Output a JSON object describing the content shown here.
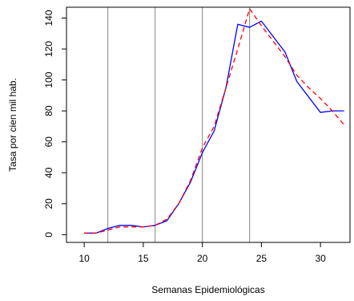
{
  "chart_data": {
    "type": "line",
    "xlabel": "Semanas Epidemiológicas",
    "ylabel": "Tasa por cien mil hab.",
    "xlim": [
      8.5,
      32.5
    ],
    "ylim": [
      -5,
      147
    ],
    "x_ticks": [
      10,
      15,
      20,
      25,
      30
    ],
    "y_ticks": [
      0,
      20,
      40,
      60,
      80,
      100,
      120,
      140
    ],
    "vertical_reference_lines": [
      12,
      16,
      20,
      24
    ],
    "grid": false,
    "legend": "none",
    "series": [
      {
        "color": "#0000ff",
        "style": "solid",
        "x": [
          10,
          11,
          12,
          13,
          14,
          15,
          16,
          17,
          18,
          19,
          20,
          21,
          22,
          23,
          24,
          25,
          26,
          27,
          28,
          29,
          30,
          31,
          32
        ],
        "y": [
          1,
          1,
          4,
          6,
          6,
          5,
          6,
          9,
          20,
          34,
          53,
          67,
          95,
          136,
          134,
          138,
          128,
          118,
          99,
          89,
          79,
          80,
          80
        ]
      },
      {
        "color": "#ff0000",
        "style": "dashed",
        "x": [
          10,
          11,
          12,
          13,
          14,
          15,
          16,
          17,
          18,
          19,
          20,
          21,
          22,
          23,
          24,
          25,
          26,
          27,
          28,
          29,
          30,
          31,
          32
        ],
        "y": [
          1,
          1,
          3,
          5,
          5,
          5,
          6,
          10,
          20,
          35,
          56,
          70,
          95,
          120,
          146,
          135,
          125,
          115,
          103,
          95,
          88,
          80,
          71
        ]
      }
    ]
  }
}
